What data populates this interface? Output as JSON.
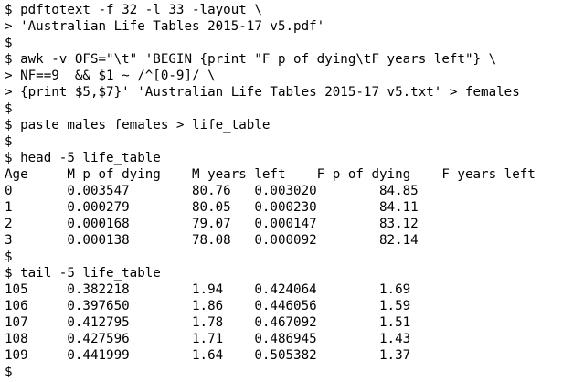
{
  "terminal": {
    "lines": [
      "$ pdftotext -f 32 -l 33 -layout \\",
      "> 'Australian Life Tables 2015-17 v5.pdf'",
      "$",
      "$ awk -v OFS=\"\\t\" 'BEGIN {print \"F p of dying\\tF years left\"} \\",
      "> NF==9  && $1 ~ /^[0-9]/ \\",
      "> {print $5,$7}' 'Australian Life Tables 2015-17 v5.txt' > females",
      "$",
      "$ paste males females > life_table",
      "$",
      "$ head -5 life_table",
      "Age     M p of dying    M years left    F p of dying    F years left",
      "0       0.003547        80.76   0.003020        84.85",
      "1       0.000279        80.05   0.000230        84.11",
      "2       0.000168        79.07   0.000147        83.12",
      "3       0.000138        78.08   0.000092        82.14",
      "$",
      "$ tail -5 life_table",
      "105     0.382218        1.94    0.424064        1.69",
      "106     0.397650        1.86    0.446056        1.59",
      "107     0.412795        1.78    0.467092        1.51",
      "108     0.427596        1.71    0.486945        1.43",
      "109     0.441999        1.64    0.505382        1.37",
      "$"
    ]
  }
}
